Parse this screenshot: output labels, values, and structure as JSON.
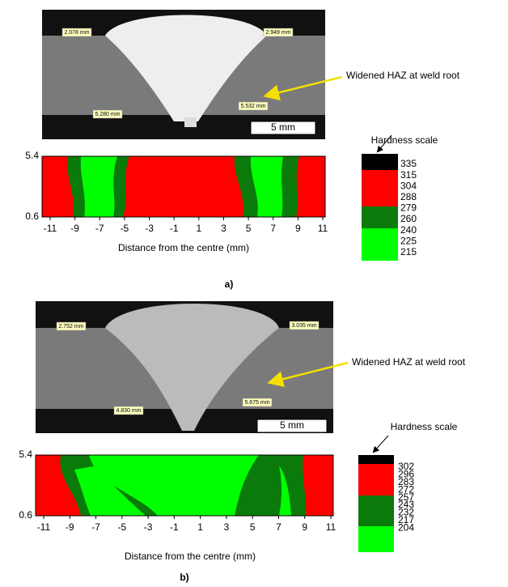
{
  "panels": [
    {
      "micrograph": {
        "measurements": [
          "2.078 mm",
          "2.949 mm",
          "5.280 mm",
          "5.532 mm"
        ],
        "scale_bar": "5 mm"
      },
      "annotation": "Widened HAZ at weld root",
      "map": {
        "yticks": [
          "5.4",
          "0.6"
        ],
        "xticks": [
          "-11",
          "-9",
          "-7",
          "-5",
          "-3",
          "-1",
          "1",
          "3",
          "5",
          "7",
          "9",
          "11"
        ],
        "xlabel": "Distance from the centre (mm)"
      },
      "hardness_scale": {
        "title": "Hardness scale",
        "levels": [
          "335",
          "315",
          "304",
          "288",
          "279",
          "260",
          "240",
          "225",
          "215"
        ]
      },
      "label": "a)"
    },
    {
      "micrograph": {
        "measurements": [
          "2.752 mm",
          "3.035 mm",
          "4.830 mm",
          "5.675 mm"
        ],
        "scale_bar": "5 mm"
      },
      "annotation": "Widened HAZ at weld root",
      "map": {
        "yticks": [
          "5.4",
          "0.6"
        ],
        "xticks": [
          "-11",
          "-9",
          "-7",
          "-5",
          "-3",
          "-1",
          "1",
          "3",
          "5",
          "7",
          "9",
          "11"
        ],
        "xlabel": "Distance from the centre (mm)"
      },
      "hardness_scale": {
        "title": "Hardness scale",
        "levels": [
          "302",
          "296",
          "283",
          "272",
          "257",
          "243",
          "232",
          "217",
          "204"
        ]
      },
      "label": "b)"
    }
  ]
}
